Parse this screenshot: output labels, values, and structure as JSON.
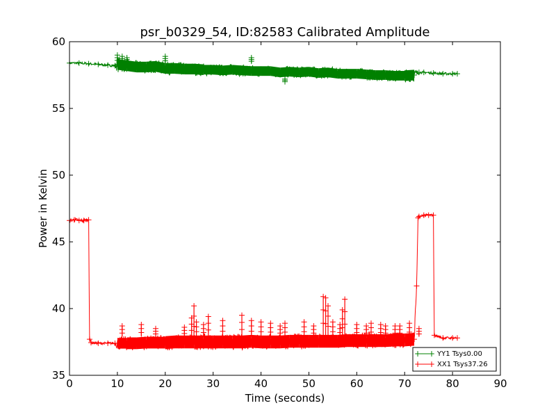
{
  "chart_data": {
    "type": "line",
    "title": "psr_b0329_54, ID:82583 Calibrated Amplitude",
    "xlabel": "Time (seconds)",
    "ylabel": "Power in Kelvin",
    "xlim": [
      0,
      90
    ],
    "ylim": [
      35,
      60
    ],
    "xticks": [
      "0",
      "10",
      "20",
      "30",
      "40",
      "50",
      "60",
      "70",
      "80",
      "90"
    ],
    "yticks": [
      "35",
      "40",
      "45",
      "50",
      "55",
      "60"
    ],
    "grid": false,
    "legend_position": "lower-right",
    "marker": "+",
    "series": [
      {
        "name": "YY1 Tsys0.00",
        "color": "#008000",
        "x": [
          0,
          2,
          4,
          6,
          8,
          9.5,
          10,
          12,
          14,
          16,
          18,
          20,
          22,
          24,
          26,
          28,
          30,
          32,
          34,
          36,
          38,
          40,
          42,
          44,
          46,
          48,
          50,
          52,
          54,
          56,
          58,
          60,
          62,
          64,
          66,
          68,
          70,
          72,
          73,
          74,
          76,
          78,
          80,
          81
        ],
        "y": [
          58.4,
          58.4,
          58.35,
          58.3,
          58.25,
          58.2,
          58.3,
          58.2,
          58.1,
          58.1,
          58.15,
          58.0,
          58.0,
          57.95,
          57.95,
          57.9,
          57.9,
          57.85,
          57.9,
          57.85,
          57.8,
          57.8,
          57.8,
          57.7,
          57.75,
          57.7,
          57.75,
          57.65,
          57.7,
          57.6,
          57.6,
          57.6,
          57.55,
          57.5,
          57.5,
          57.45,
          57.45,
          57.5,
          57.7,
          57.7,
          57.65,
          57.6,
          57.6,
          57.6
        ],
        "spread": [
          0.1,
          0.1,
          0.1,
          0.1,
          0.1,
          0.1,
          0.6,
          0.5,
          0.5,
          0.5,
          0.5,
          0.5,
          0.5,
          0.5,
          0.5,
          0.5,
          0.45,
          0.45,
          0.45,
          0.45,
          0.45,
          0.45,
          0.45,
          0.45,
          0.45,
          0.45,
          0.45,
          0.45,
          0.45,
          0.45,
          0.45,
          0.45,
          0.45,
          0.45,
          0.45,
          0.45,
          0.5,
          0.5,
          0.1,
          0.1,
          0.1,
          0.1,
          0.1,
          0.1
        ]
      },
      {
        "name": "XX1 Tsys37.26",
        "color": "#ff0000",
        "x": [
          0,
          1,
          2,
          3,
          4,
          4.2,
          4.5,
          6,
          8,
          9.5,
          10,
          12,
          14,
          16,
          18,
          20,
          22,
          24,
          26,
          28,
          30,
          32,
          34,
          36,
          38,
          40,
          42,
          44,
          46,
          48,
          50,
          52,
          54,
          56,
          58,
          60,
          62,
          64,
          66,
          68,
          70,
          72,
          72.5,
          72.8,
          73,
          74,
          75,
          76,
          76.2,
          78,
          80,
          81
        ],
        "y": [
          46.6,
          46.65,
          46.6,
          46.6,
          46.65,
          37.7,
          37.45,
          37.4,
          37.4,
          37.4,
          37.4,
          37.4,
          37.4,
          37.45,
          37.45,
          37.45,
          37.5,
          37.5,
          37.5,
          37.5,
          37.5,
          37.5,
          37.5,
          37.5,
          37.55,
          37.5,
          37.5,
          37.5,
          37.55,
          37.55,
          37.55,
          37.55,
          37.55,
          37.55,
          37.6,
          37.6,
          37.6,
          37.6,
          37.6,
          37.65,
          37.65,
          37.7,
          41.7,
          46.8,
          46.9,
          47.0,
          47.0,
          47.0,
          38.0,
          37.8,
          37.8,
          37.8
        ],
        "spread": [
          0.15,
          0.15,
          0.15,
          0.15,
          0.15,
          0.1,
          0.1,
          0.1,
          0.1,
          0.1,
          0.5,
          0.55,
          0.55,
          0.55,
          0.55,
          0.6,
          0.6,
          0.6,
          0.6,
          0.6,
          0.6,
          0.6,
          0.6,
          0.6,
          0.6,
          0.6,
          0.6,
          0.6,
          0.6,
          0.6,
          0.6,
          0.6,
          0.6,
          0.6,
          0.6,
          0.6,
          0.6,
          0.6,
          0.6,
          0.6,
          0.6,
          0.6,
          0.1,
          0.1,
          0.1,
          0.1,
          0.1,
          0.1,
          0.1,
          0.1,
          0.1,
          0.1
        ]
      }
    ],
    "red_spikes": {
      "x": [
        11,
        15,
        18,
        24,
        25.5,
        26,
        26.5,
        28,
        29,
        32,
        36,
        38,
        40,
        42,
        44,
        45,
        49,
        51,
        53,
        53.5,
        54,
        55,
        56.5,
        57,
        57.5,
        60,
        62,
        63,
        65,
        66,
        68,
        69,
        71,
        73
      ],
      "y": [
        38.7,
        38.8,
        38.5,
        38.6,
        39.3,
        40.2,
        39.0,
        38.8,
        39.4,
        39.1,
        39.5,
        39.1,
        39.0,
        38.9,
        38.7,
        38.9,
        39.0,
        38.7,
        40.9,
        40.8,
        40.2,
        39.0,
        38.8,
        39.9,
        40.7,
        38.8,
        38.7,
        38.9,
        38.8,
        38.7,
        38.7,
        38.7,
        38.9,
        38.5
      ]
    },
    "green_spikes": {
      "x": [
        10,
        11,
        12,
        20,
        38,
        45
      ],
      "y": [
        59.0,
        58.9,
        58.8,
        58.9,
        58.8,
        57.0
      ]
    }
  }
}
